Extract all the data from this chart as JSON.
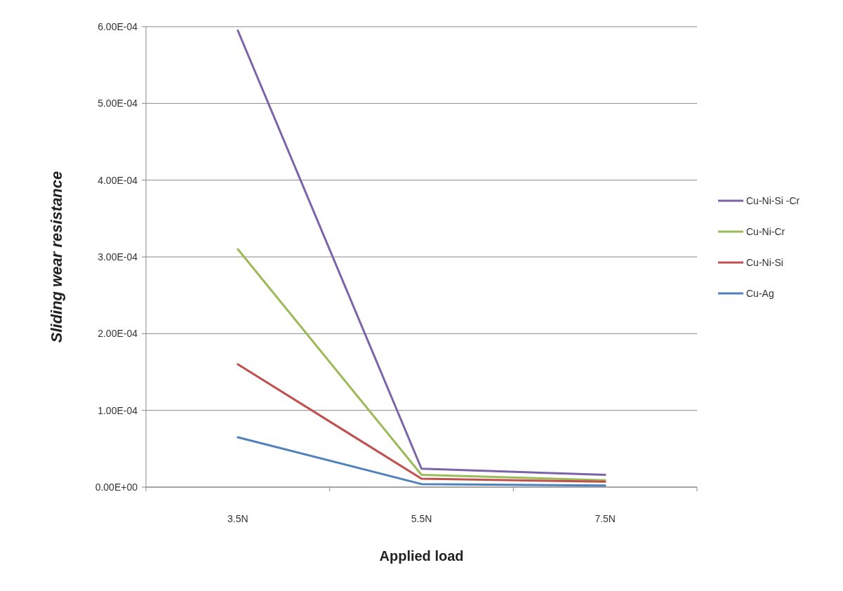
{
  "chart_data": {
    "type": "line",
    "xlabel": "Applied load",
    "ylabel": "Sliding wear resistance",
    "categories": [
      "3.5N",
      "5.5N",
      "7.5N"
    ],
    "series": [
      {
        "name": "Cu-Ni-Si -Cr",
        "color": "#7b64a8",
        "values": [
          0.000595,
          2.4e-05,
          1.6e-05
        ]
      },
      {
        "name": "Cu-Ni-Cr",
        "color": "#9bbb59",
        "values": [
          0.00031,
          1.6e-05,
          9e-06
        ]
      },
      {
        "name": "Cu-Ni-Si",
        "color": "#c0504d",
        "values": [
          0.00016,
          1.1e-05,
          7e-06
        ]
      },
      {
        "name": "Cu-Ag",
        "color": "#4f81bd",
        "values": [
          6.5e-05,
          4e-06,
          2e-06
        ]
      }
    ],
    "ylim": [
      0,
      0.0006
    ],
    "yticks": [
      {
        "value": 0,
        "label": "0.00E+00"
      },
      {
        "value": 0.0001,
        "label": "1.00E-04"
      },
      {
        "value": 0.0002,
        "label": "2.00E-04"
      },
      {
        "value": 0.0003,
        "label": "3.00E-04"
      },
      {
        "value": 0.0004,
        "label": "4.00E-04"
      },
      {
        "value": 0.0005,
        "label": "5.00E-04"
      },
      {
        "value": 0.0006,
        "label": "6.00E-04"
      }
    ],
    "grid": "y",
    "legend": "right",
    "marker": "none",
    "line_style": "solid"
  }
}
